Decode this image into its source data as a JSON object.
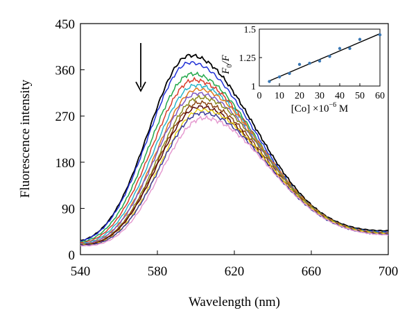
{
  "chart_data": [
    {
      "type": "line",
      "title": "",
      "xlabel": "Wavelength (nm)",
      "ylabel": "Fluorescence intensity",
      "xlim": [
        540,
        700
      ],
      "ylim": [
        0,
        450
      ],
      "x_ticks": [
        "540",
        "580",
        "620",
        "660",
        "700"
      ],
      "y_ticks": [
        "0",
        "90",
        "180",
        "270",
        "360",
        "450"
      ],
      "grid": false,
      "legend": "none",
      "annotation": "downward arrow near 570 nm indicating decreasing intensity",
      "series": [
        {
          "color": "#000000",
          "peak_wavelength": 597,
          "peak": 388,
          "end": 44
        },
        {
          "color": "#1f2fd6",
          "peak_wavelength": 597,
          "peak": 374,
          "end": 42
        },
        {
          "color": "#22a84a",
          "peak_wavelength": 598,
          "peak": 352,
          "end": 41
        },
        {
          "color": "#d93b2b",
          "peak_wavelength": 599,
          "peak": 340,
          "end": 40
        },
        {
          "color": "#2bb5c9",
          "peak_wavelength": 600,
          "peak": 330,
          "end": 40
        },
        {
          "color": "#e07a1f",
          "peak_wavelength": 601,
          "peak": 322,
          "end": 39
        },
        {
          "color": "#7e57c2",
          "peak_wavelength": 601,
          "peak": 314,
          "end": 39
        },
        {
          "color": "#8a8a1e",
          "peak_wavelength": 602,
          "peak": 306,
          "end": 38
        },
        {
          "color": "#8b4513",
          "peak_wavelength": 602,
          "peak": 296,
          "end": 38
        },
        {
          "color": "#5a0a0a",
          "peak_wavelength": 602,
          "peak": 288,
          "end": 37
        },
        {
          "color": "#e8d21a",
          "peak_wavelength": 603,
          "peak": 282,
          "end": 37
        },
        {
          "color": "#3a3a9a",
          "peak_wavelength": 603,
          "peak": 276,
          "end": 36
        },
        {
          "color": "#e59ad0",
          "peak_wavelength": 604,
          "peak": 266,
          "end": 35
        }
      ]
    },
    {
      "type": "scatter",
      "xlabel": "[Co] ×10",
      "xlabel_exp": "−6",
      "xlabel_unit": "M",
      "ylabel": "F0/F",
      "ylabel_F0": "F",
      "ylabel_sub": "0",
      "ylabel_F": "/F",
      "xlim": [
        0,
        60
      ],
      "ylim": [
        1,
        1.5
      ],
      "x_ticks": [
        "0",
        "10",
        "20",
        "30",
        "40",
        "50",
        "60"
      ],
      "y_ticks": [
        "1",
        "1.25",
        "1.5"
      ],
      "x": [
        5,
        10,
        15,
        20,
        25,
        30,
        35,
        40,
        45,
        50,
        60
      ],
      "y": [
        1.04,
        1.08,
        1.11,
        1.19,
        1.2,
        1.22,
        1.26,
        1.33,
        1.33,
        1.41,
        1.45
      ],
      "fit_line": {
        "x": [
          5,
          60
        ],
        "y": [
          1.045,
          1.46
        ]
      },
      "colors": {
        "points": "#3a78b5",
        "line": "#000000"
      }
    }
  ]
}
